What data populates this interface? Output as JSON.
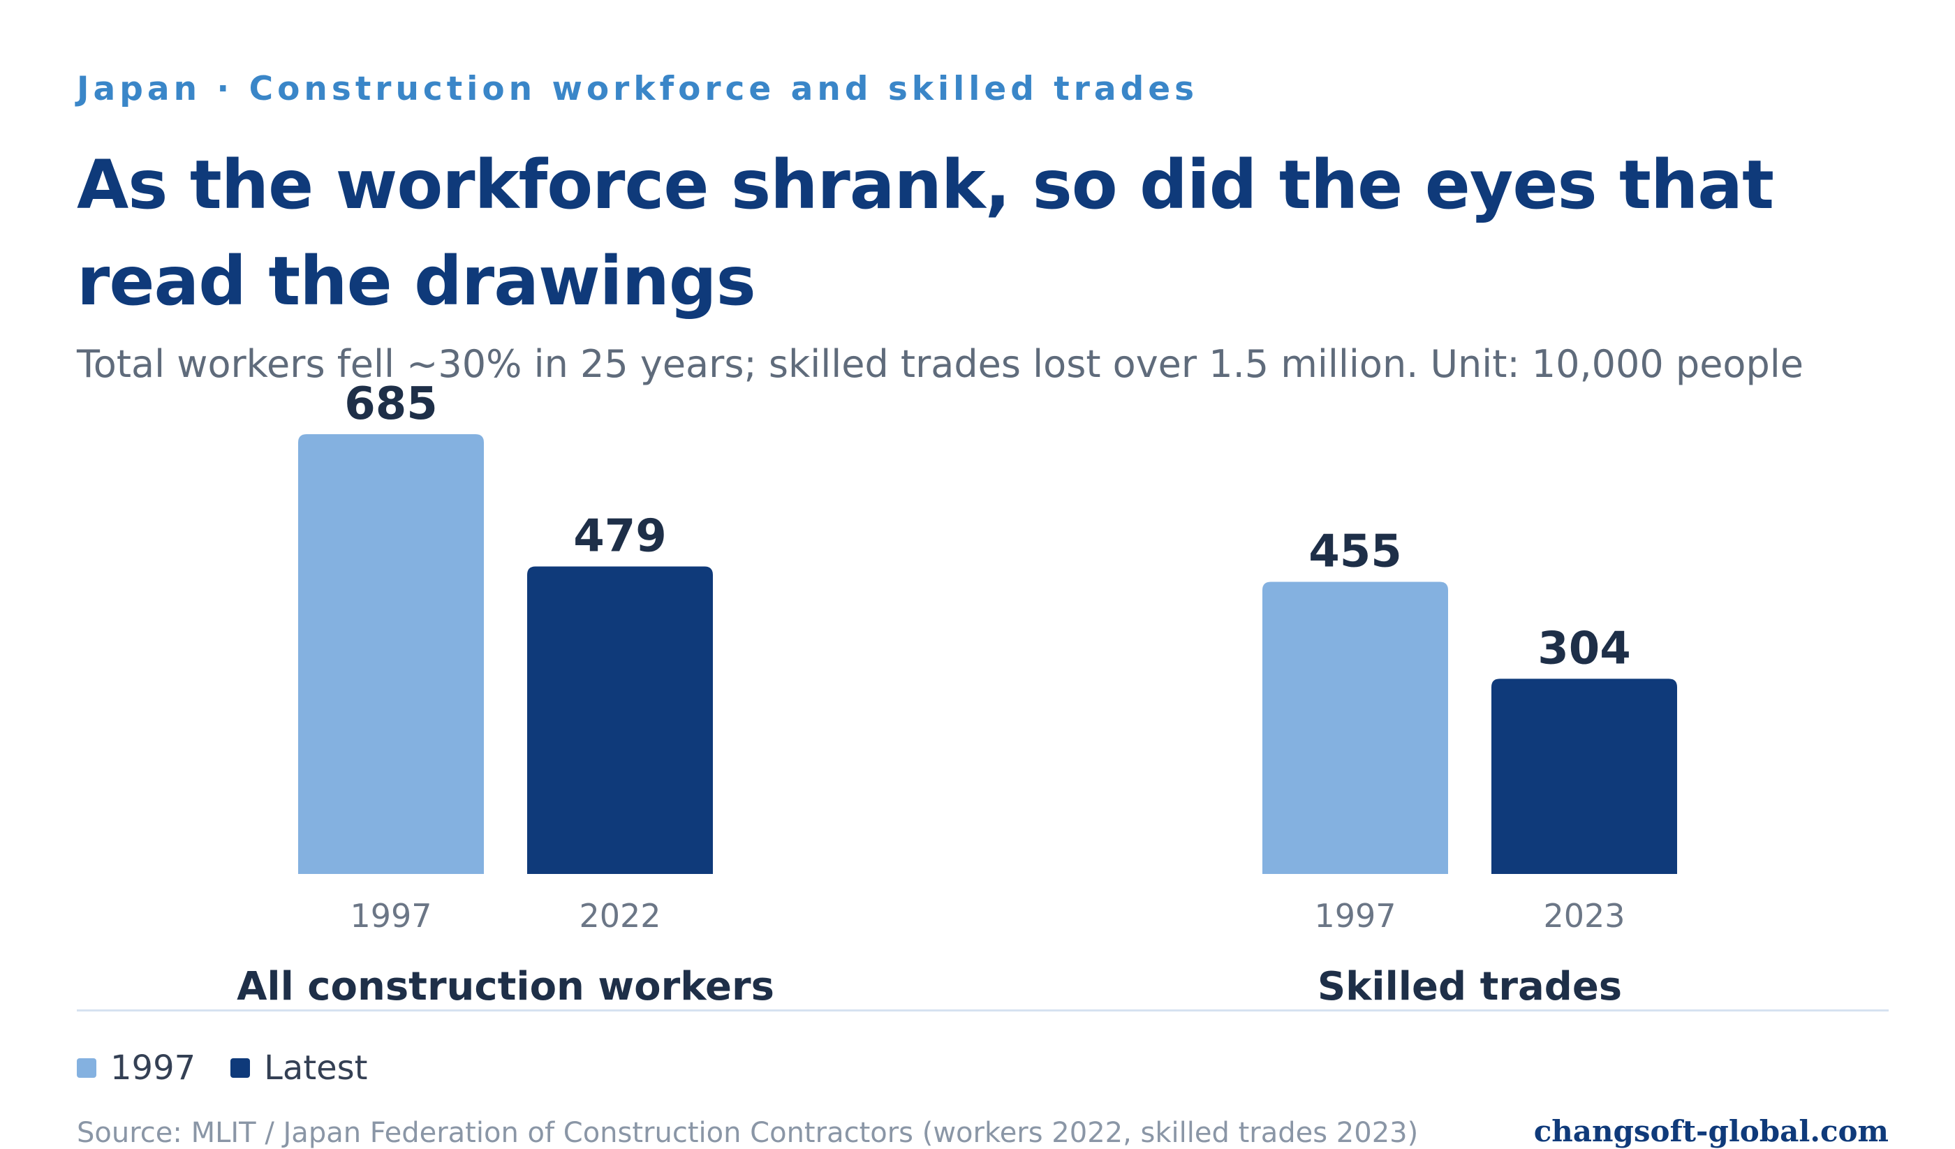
{
  "kicker": "Japan · Construction workforce and skilled trades",
  "title": "As the workforce shrank, so did the eyes that read the drawings",
  "subtitle": "Total workers fell ~30% in 25 years; skilled trades lost over 1.5 million. Unit: 10,000 people",
  "legend": {
    "item_1997": "1997",
    "item_latest": "Latest"
  },
  "footer": {
    "source": "Source: MLIT / Japan Federation of Construction Contractors (workers 2022, skilled trades 2023)",
    "site": "changsoft-global.com"
  },
  "colors": {
    "series_1997": "#84b1e0",
    "series_latest": "#0f3a7a",
    "value_label": "#1e2f48",
    "tick_label": "#6b7686",
    "group_label": "#1e2f48"
  },
  "chart_data": {
    "type": "bar",
    "title": "As the workforce shrank, so did the eyes that read the drawings",
    "ylim": [
      0,
      685
    ],
    "grid": false,
    "legend_position": "bottom-left",
    "groups": [
      {
        "label": "All construction workers",
        "bars": [
          {
            "year": "1997",
            "value": 685,
            "series": "1997"
          },
          {
            "year": "2022",
            "value": 479,
            "series": "Latest"
          }
        ]
      },
      {
        "label": "Skilled trades",
        "bars": [
          {
            "year": "1997",
            "value": 455,
            "series": "1997"
          },
          {
            "year": "2023",
            "value": 304,
            "series": "Latest"
          }
        ]
      }
    ]
  }
}
